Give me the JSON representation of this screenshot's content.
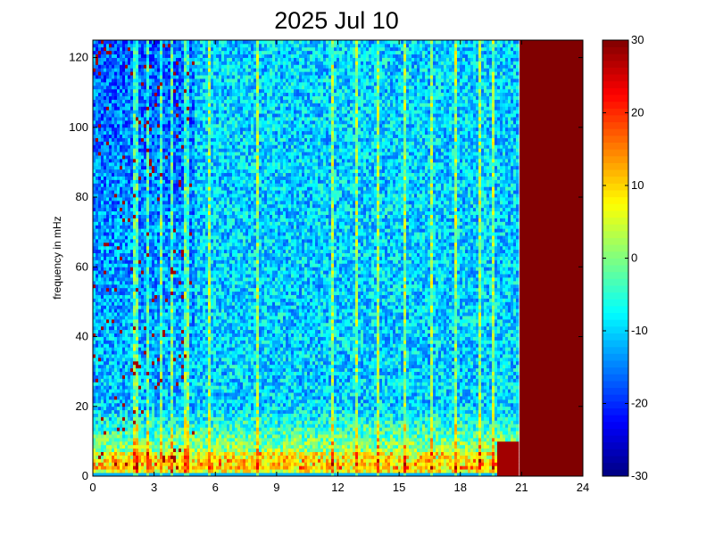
{
  "chart_data": {
    "type": "heatmap",
    "title": "2025 Jul 10",
    "xlabel": "",
    "ylabel": "frequency in mHz",
    "xlim": [
      0,
      24
    ],
    "ylim": [
      0,
      125
    ],
    "x_ticks": [
      0,
      3,
      6,
      9,
      12,
      15,
      18,
      21,
      24
    ],
    "y_ticks": [
      0,
      20,
      40,
      60,
      80,
      100,
      120
    ],
    "colorbar": {
      "colormap": "jet",
      "clim": [
        -30,
        30
      ],
      "ticks": [
        -30,
        -20,
        -10,
        0,
        10,
        20,
        30
      ]
    },
    "saturated_region": {
      "x_start": 20.9,
      "x_end": 24,
      "value": 30
    },
    "vertical_stripes_hours": [
      2.1,
      2.7,
      3.3,
      3.9,
      4.6,
      5.7,
      8.1,
      11.7,
      12.9,
      14.0,
      15.3,
      16.6,
      17.8,
      18.9,
      19.6
    ],
    "low_frequency_band_mhz": [
      0,
      20
    ]
  },
  "colors": {
    "background": "#ffffff",
    "saturated": "#800000"
  }
}
